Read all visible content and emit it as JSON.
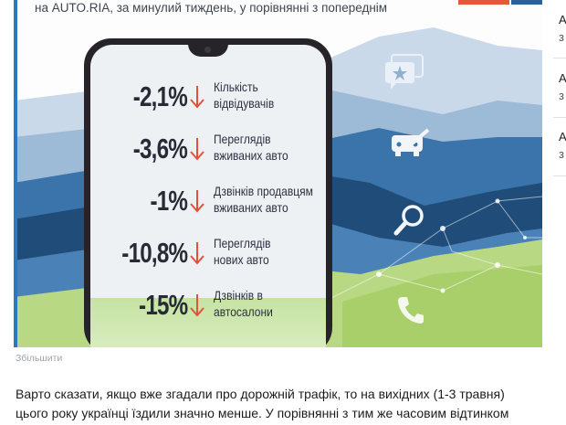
{
  "infographic": {
    "subtitle": "на AUTO.RIA, за минулий тиждень, у порівнянні з попереднім",
    "icons": [
      "message-bubble-icon",
      "car-check-icon",
      "search-icon",
      "phone-call-icon"
    ],
    "colors": {
      "dark_blue": "#1f4e78",
      "mid_blue": "#3a72a6",
      "light_blue": "#8fb1cf",
      "green": "#b5d77f",
      "arrow_red": "#e0533a"
    },
    "stats": [
      {
        "value": "-2,1%",
        "label_line1": "Кількість",
        "label_line2": "відвідувачів"
      },
      {
        "value": "-3,6%",
        "label_line1": "Переглядів",
        "label_line2": "вживаних авто"
      },
      {
        "value": "-1%",
        "label_line1": "Дзвінків продавцям",
        "label_line2": "вживаних авто"
      },
      {
        "value": "-10,8%",
        "label_line1": "Переглядів",
        "label_line2": "нових авто"
      },
      {
        "value": "-15%",
        "label_line1": "Дзвінків в",
        "label_line2": "автосалони"
      }
    ]
  },
  "zoom_link": "Збільшити",
  "sidebar": {
    "items": [
      {
        "line1": "А",
        "line2": "з"
      },
      {
        "line1": "А",
        "line2": "з"
      },
      {
        "line1": "А",
        "line2": "з"
      }
    ]
  },
  "article": {
    "line1": "Варто сказати, якщо вже згадали про дорожній трафік, то на вихідних (1-3 травня)",
    "line2": "цього року українці їздили значно менше. У порівнянні з тим же часовим відтинком"
  }
}
